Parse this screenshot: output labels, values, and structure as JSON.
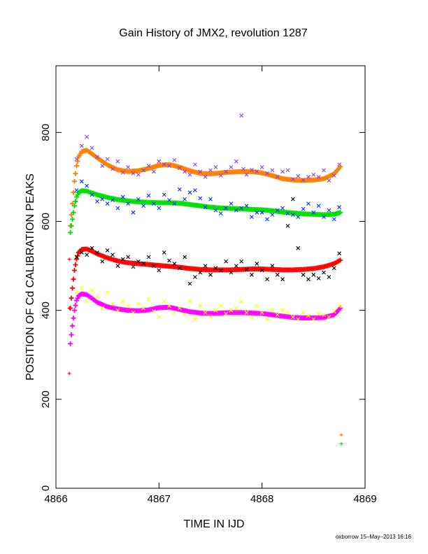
{
  "chart_data": {
    "type": "scatter",
    "title": "Gain History of JMX2, revolution 1287",
    "xlabel": "TIME IN IJD",
    "ylabel": "POSITION OF Cd CALIBRATION PEAKS",
    "xlim": [
      4866,
      4869
    ],
    "ylim": [
      0,
      950
    ],
    "x_ticks": [
      4866,
      4867,
      4868,
      4869
    ],
    "y_ticks": [
      0,
      200,
      400,
      600,
      800
    ],
    "grid": false,
    "legend": "none",
    "footer": "oxborrow 15–May–2013 16:16",
    "series": [
      {
        "color": "#ff8000",
        "marker": "plus",
        "role": "fit",
        "x": [
          4866.14,
          4866.16,
          4866.18,
          4866.2,
          4866.22,
          4866.25,
          4866.3,
          4866.35,
          4866.4,
          4866.5,
          4866.6,
          4866.7,
          4866.8,
          4866.9,
          4867.0,
          4867.1,
          4867.2,
          4867.3,
          4867.4,
          4867.5,
          4867.6,
          4867.7,
          4867.8,
          4867.9,
          4868.0,
          4868.1,
          4868.2,
          4868.3,
          4868.4,
          4868.5,
          4868.6,
          4868.7,
          4868.76
        ],
        "y": [
          590,
          640,
          690,
          725,
          745,
          757,
          760,
          752,
          743,
          727,
          716,
          712,
          714,
          719,
          726,
          728,
          722,
          714,
          708,
          707,
          709,
          711,
          712,
          712,
          709,
          703,
          696,
          693,
          692,
          693,
          696,
          707,
          723
        ]
      },
      {
        "color": "#9040e0",
        "marker": "x",
        "role": "data",
        "x": [
          4866.2,
          4866.25,
          4866.3,
          4866.35,
          4866.4,
          4866.45,
          4866.5,
          4866.55,
          4866.6,
          4866.65,
          4866.7,
          4866.75,
          4866.8,
          4866.85,
          4866.9,
          4866.95,
          4867.0,
          4867.05,
          4867.1,
          4867.15,
          4867.2,
          4867.25,
          4867.3,
          4867.35,
          4867.4,
          4867.45,
          4867.5,
          4867.55,
          4867.6,
          4867.65,
          4867.7,
          4867.75,
          4867.8,
          4867.82,
          4867.85,
          4867.9,
          4867.95,
          4868.0,
          4868.05,
          4868.1,
          4868.15,
          4868.2,
          4868.25,
          4868.3,
          4868.35,
          4868.4,
          4868.45,
          4868.5,
          4868.55,
          4868.6,
          4868.65,
          4868.7,
          4868.75
        ],
        "y": [
          740,
          770,
          790,
          765,
          745,
          725,
          740,
          718,
          735,
          710,
          722,
          708,
          705,
          715,
          725,
          712,
          735,
          728,
          725,
          738,
          720,
          712,
          705,
          728,
          712,
          700,
          715,
          722,
          703,
          712,
          722,
          735,
          838,
          718,
          705,
          716,
          712,
          722,
          708,
          715,
          700,
          712,
          715,
          695,
          702,
          693,
          700,
          705,
          700,
          715,
          692,
          703,
          728
        ]
      },
      {
        "color": "#00e000",
        "marker": "plus",
        "role": "fit",
        "x": [
          4866.14,
          4866.16,
          4866.18,
          4866.2,
          4866.22,
          4866.25,
          4866.3,
          4866.35,
          4866.4,
          4866.5,
          4866.6,
          4866.7,
          4866.8,
          4866.9,
          4867.0,
          4867.1,
          4867.2,
          4867.3,
          4867.4,
          4867.5,
          4867.6,
          4867.7,
          4867.8,
          4867.9,
          4868.0,
          4868.1,
          4868.2,
          4868.3,
          4868.4,
          4868.5,
          4868.6,
          4868.7,
          4868.76
        ],
        "y": [
          575,
          605,
          635,
          655,
          665,
          669,
          668,
          664,
          660,
          654,
          649,
          646,
          644,
          643,
          642,
          642,
          641,
          638,
          635,
          632,
          630,
          629,
          628,
          627,
          626,
          624,
          621,
          619,
          617,
          616,
          615,
          616,
          620
        ]
      },
      {
        "color": "#0030ff",
        "marker": "x",
        "role": "data",
        "x": [
          4866.2,
          4866.25,
          4866.3,
          4866.35,
          4866.4,
          4866.45,
          4866.5,
          4866.55,
          4866.6,
          4866.65,
          4866.7,
          4866.75,
          4866.8,
          4866.85,
          4866.9,
          4866.95,
          4867.0,
          4867.05,
          4867.1,
          4867.15,
          4867.2,
          4867.25,
          4867.3,
          4867.35,
          4867.4,
          4867.45,
          4867.5,
          4867.55,
          4867.6,
          4867.65,
          4867.7,
          4867.75,
          4867.8,
          4867.85,
          4867.9,
          4867.95,
          4868.0,
          4868.05,
          4868.1,
          4868.15,
          4868.2,
          4868.25,
          4868.3,
          4868.35,
          4868.4,
          4868.45,
          4868.5,
          4868.55,
          4868.6,
          4868.65,
          4868.7,
          4868.75
        ],
        "y": [
          670,
          690,
          680,
          660,
          645,
          650,
          640,
          648,
          630,
          655,
          640,
          620,
          650,
          635,
          658,
          640,
          630,
          660,
          648,
          640,
          672,
          650,
          665,
          670,
          652,
          632,
          650,
          625,
          618,
          630,
          640,
          625,
          630,
          635,
          610,
          620,
          620,
          605,
          615,
          625,
          630,
          618,
          615,
          610,
          628,
          640,
          620,
          635,
          610,
          625,
          605,
          632
        ]
      },
      {
        "color": "#ff0000",
        "marker": "plus",
        "role": "fit",
        "x": [
          4866.14,
          4866.16,
          4866.18,
          4866.2,
          4866.22,
          4866.25,
          4866.3,
          4866.35,
          4866.4,
          4866.5,
          4866.6,
          4866.7,
          4866.8,
          4866.9,
          4867.0,
          4867.1,
          4867.2,
          4867.3,
          4867.4,
          4867.5,
          4867.6,
          4867.7,
          4867.8,
          4867.9,
          4868.0,
          4868.1,
          4868.2,
          4868.3,
          4868.4,
          4868.5,
          4868.6,
          4868.7,
          4868.76
        ],
        "y": [
          405,
          450,
          490,
          515,
          530,
          537,
          538,
          533,
          527,
          518,
          511,
          507,
          505,
          503,
          501,
          499,
          497,
          494,
          492,
          491,
          491,
          491,
          492,
          493,
          493,
          492,
          491,
          491,
          492,
          494,
          498,
          505,
          513
        ]
      },
      {
        "color": "#000000",
        "marker": "x",
        "role": "data",
        "x": [
          4866.2,
          4866.25,
          4866.3,
          4866.35,
          4866.4,
          4866.45,
          4866.5,
          4866.55,
          4866.6,
          4866.65,
          4866.7,
          4866.75,
          4866.8,
          4866.85,
          4866.9,
          4866.95,
          4867.0,
          4867.05,
          4867.1,
          4867.15,
          4867.2,
          4867.25,
          4867.3,
          4867.35,
          4867.4,
          4867.45,
          4867.5,
          4867.55,
          4867.6,
          4867.65,
          4867.7,
          4867.75,
          4867.8,
          4867.85,
          4867.9,
          4867.95,
          4868.0,
          4868.05,
          4868.1,
          4868.15,
          4868.2,
          4868.25,
          4868.3,
          4868.35,
          4868.4,
          4868.45,
          4868.5,
          4868.55,
          4868.6,
          4868.65,
          4868.7,
          4868.75
        ],
        "y": [
          520,
          530,
          525,
          540,
          530,
          510,
          535,
          525,
          500,
          515,
          520,
          498,
          510,
          505,
          520,
          500,
          490,
          530,
          512,
          505,
          495,
          520,
          460,
          475,
          485,
          500,
          480,
          495,
          490,
          510,
          485,
          500,
          510,
          492,
          480,
          505,
          490,
          470,
          500,
          480,
          470,
          590,
          650,
          540,
          480,
          470,
          480,
          472,
          485,
          475,
          495,
          528
        ]
      },
      {
        "color": "#ff00ff",
        "marker": "plus",
        "role": "fit",
        "x": [
          4866.14,
          4866.16,
          4866.18,
          4866.2,
          4866.22,
          4866.25,
          4866.3,
          4866.35,
          4866.4,
          4866.5,
          4866.6,
          4866.7,
          4866.8,
          4866.9,
          4867.0,
          4867.1,
          4867.2,
          4867.3,
          4867.4,
          4867.5,
          4867.6,
          4867.7,
          4867.8,
          4867.9,
          4868.0,
          4868.1,
          4868.2,
          4868.3,
          4868.4,
          4868.5,
          4868.6,
          4868.7,
          4868.76
        ],
        "y": [
          325,
          365,
          400,
          422,
          433,
          437,
          435,
          427,
          418,
          408,
          403,
          400,
          399,
          401,
          406,
          407,
          402,
          397,
          394,
          393,
          394,
          395,
          395,
          394,
          393,
          390,
          387,
          384,
          383,
          383,
          384,
          390,
          405
        ]
      },
      {
        "color": "#ffff00",
        "marker": "x",
        "role": "data",
        "x": [
          4866.2,
          4866.25,
          4866.3,
          4866.35,
          4866.4,
          4866.45,
          4866.5,
          4866.55,
          4866.6,
          4866.65,
          4866.7,
          4866.75,
          4866.8,
          4866.85,
          4866.9,
          4866.95,
          4867.0,
          4867.05,
          4867.1,
          4867.15,
          4867.2,
          4867.25,
          4867.3,
          4867.35,
          4867.4,
          4867.45,
          4867.5,
          4867.55,
          4867.6,
          4867.65,
          4867.7,
          4867.75,
          4867.8,
          4867.85,
          4867.9,
          4867.95,
          4868.0,
          4868.05,
          4868.1,
          4868.15,
          4868.2,
          4868.25,
          4868.3,
          4868.35,
          4868.4,
          4868.45,
          4868.5,
          4868.55,
          4868.6,
          4868.65,
          4868.7,
          4868.75
        ],
        "y": [
          440,
          450,
          420,
          445,
          430,
          405,
          440,
          415,
          400,
          420,
          410,
          395,
          415,
          405,
          425,
          398,
          385,
          420,
          410,
          395,
          405,
          390,
          420,
          380,
          410,
          395,
          385,
          400,
          410,
          392,
          400,
          405,
          420,
          395,
          385,
          410,
          395,
          380,
          400,
          390,
          400,
          395,
          385,
          380,
          395,
          388,
          380,
          392,
          390,
          385,
          398,
          410
        ]
      },
      {
        "color": "#ff0000",
        "marker": "plus",
        "role": "outlier",
        "x": [
          4866.13,
          4866.13,
          4866.13
        ],
        "y": [
          258,
          515,
          405
        ]
      },
      {
        "color": "#ff8000",
        "marker": "plus",
        "role": "outlier",
        "x": [
          4868.77
        ],
        "y": [
          120
        ]
      },
      {
        "color": "#00e000",
        "marker": "plus",
        "role": "outlier",
        "x": [
          4868.77
        ],
        "y": [
          100
        ]
      }
    ]
  }
}
